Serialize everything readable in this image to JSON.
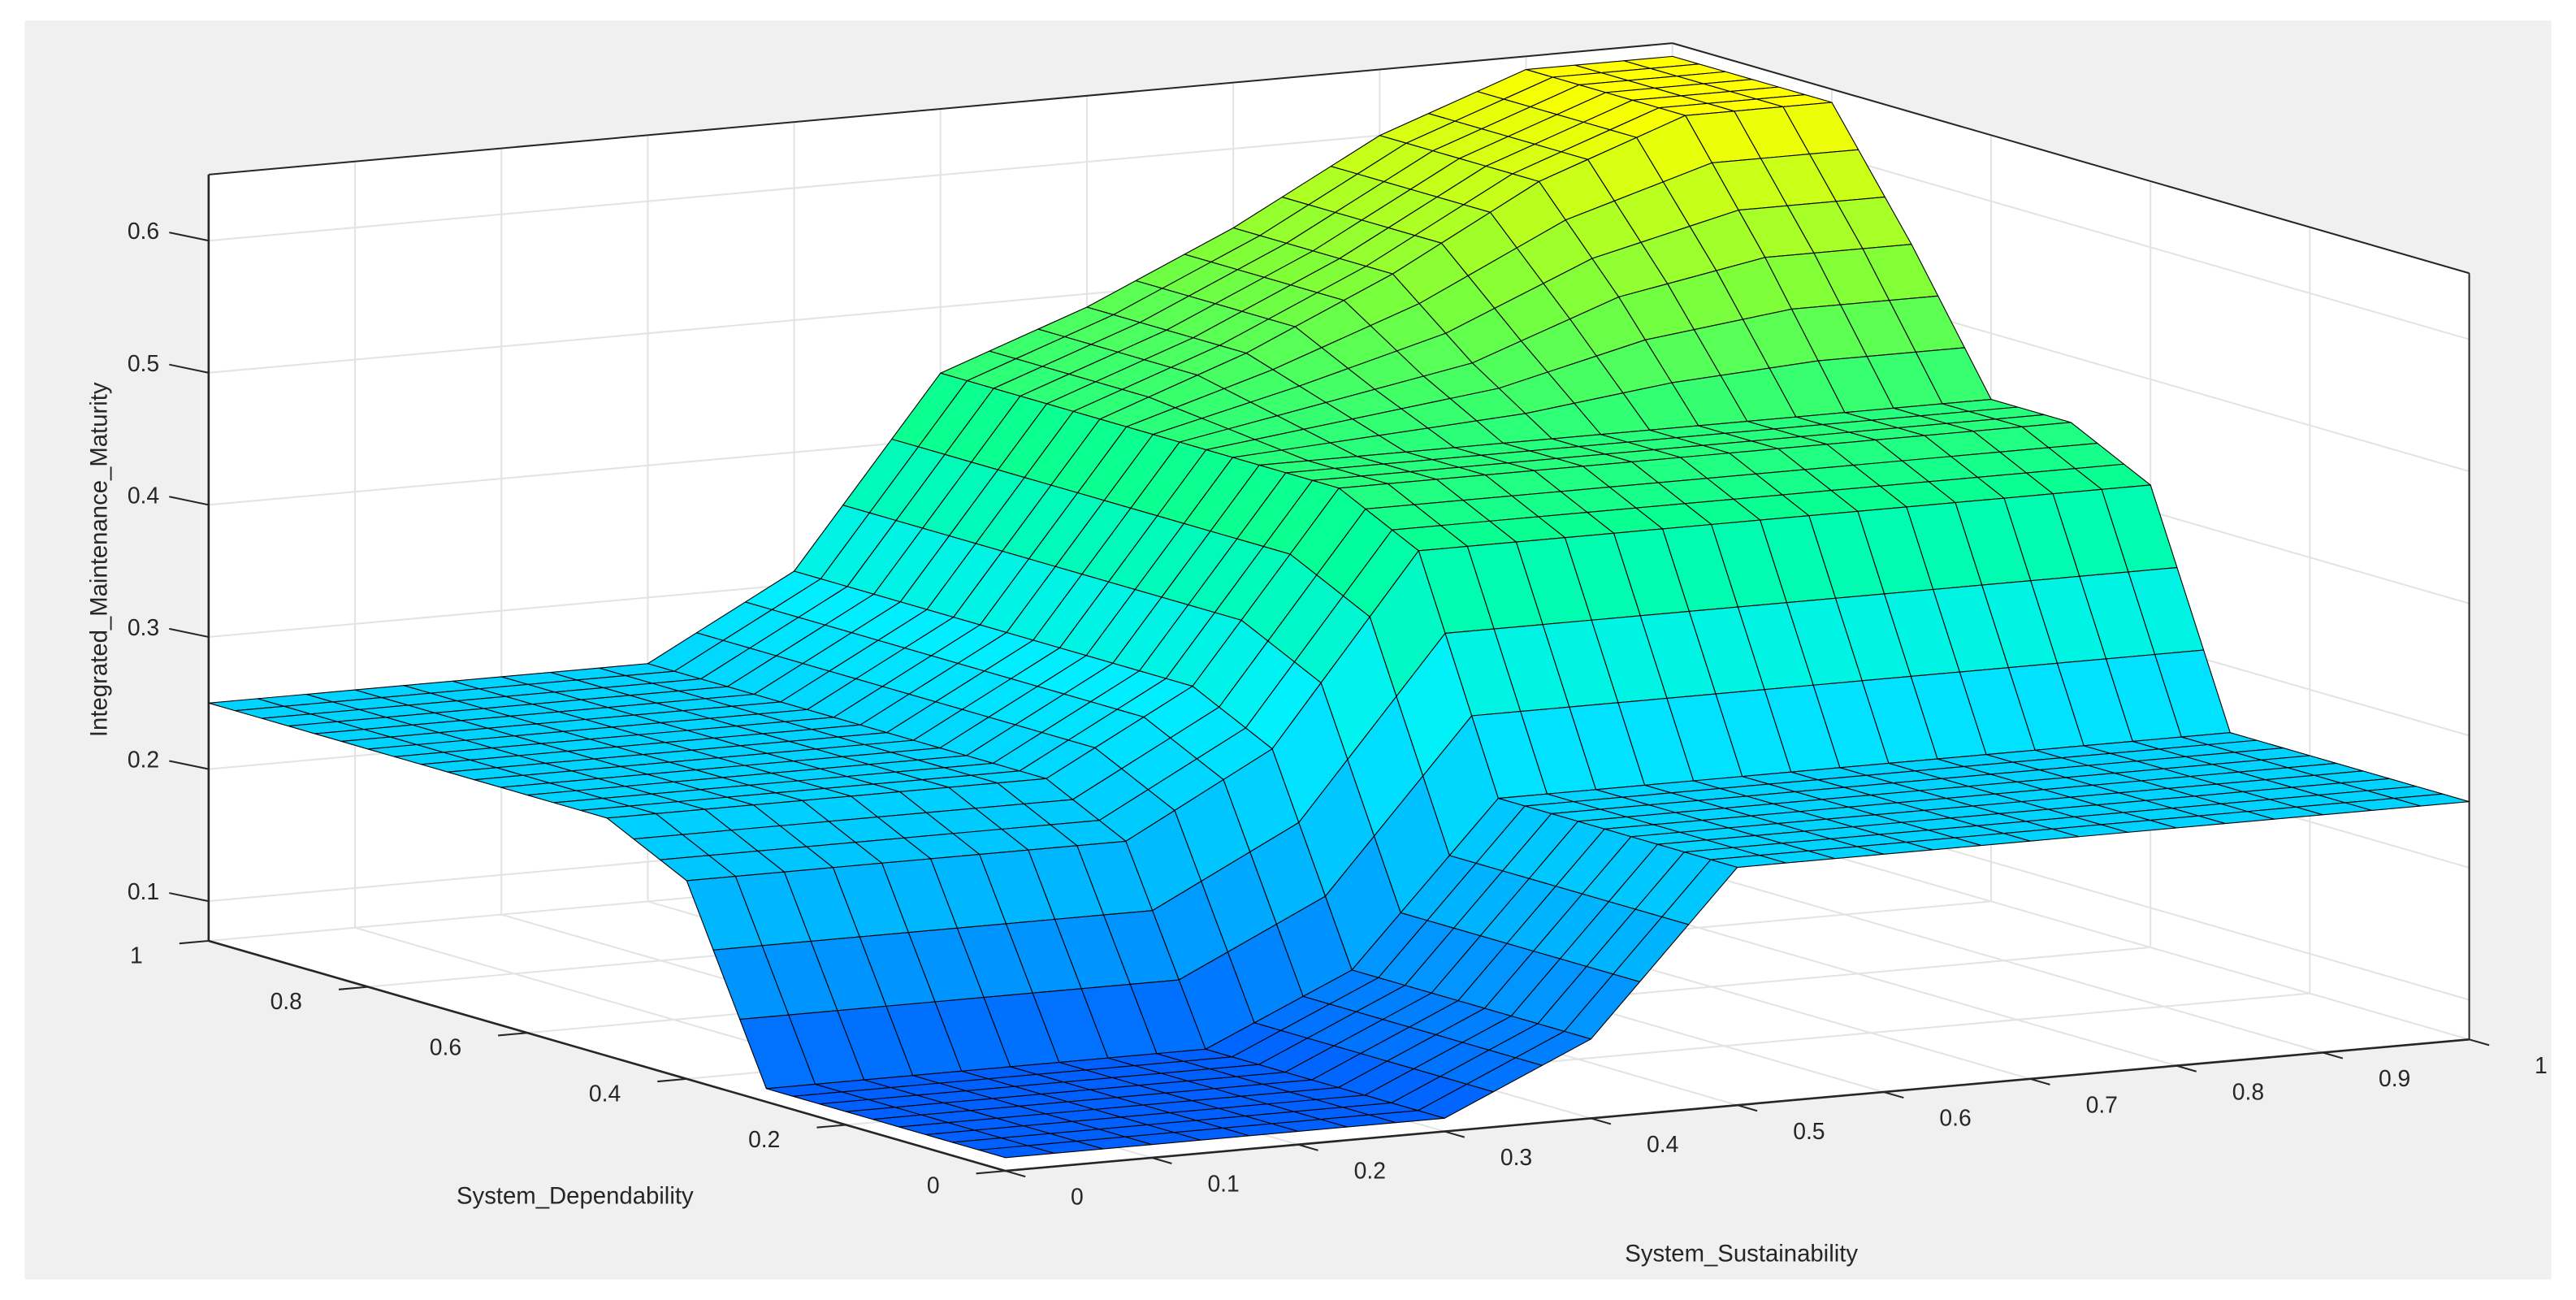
{
  "chart_data": {
    "type": "surface",
    "title": "",
    "xlabel": "System_Sustainability",
    "ylabel": "System_Dependability",
    "zlabel": "Integrated_Maintenance_Maturity",
    "xlim": [
      0,
      1
    ],
    "ylim": [
      0,
      1
    ],
    "zlim": [
      0.07,
      0.65
    ],
    "grid": true,
    "x_ticks": [
      "0",
      "0.1",
      "0.2",
      "0.3",
      "0.4",
      "0.5",
      "0.6",
      "0.7",
      "0.8",
      "0.9",
      "1"
    ],
    "x_tick_values": [
      0,
      0.1,
      0.2,
      0.3,
      0.4,
      0.5,
      0.6,
      0.7,
      0.8,
      0.9,
      1
    ],
    "y_ticks": [
      "0",
      "0.2",
      "0.4",
      "0.6",
      "0.8",
      "1"
    ],
    "y_tick_values": [
      0,
      0.2,
      0.4,
      0.6,
      0.8,
      1
    ],
    "z_ticks": [
      "0.1",
      "0.2",
      "0.3",
      "0.4",
      "0.5",
      "0.6"
    ],
    "z_tick_values": [
      0.1,
      0.2,
      0.3,
      0.4,
      0.5,
      0.6
    ],
    "x": [
      0,
      0.1,
      0.2,
      0.3,
      0.4,
      0.5,
      0.6,
      0.7,
      0.8,
      0.9,
      1
    ],
    "y": [
      0,
      0.1,
      0.2,
      0.3,
      0.4,
      0.5,
      0.6,
      0.7,
      0.8,
      0.9,
      1
    ],
    "z_rows_by_y": [
      [
        0.08,
        0.08,
        0.08,
        0.08,
        0.13,
        0.25,
        0.25,
        0.25,
        0.25,
        0.25,
        0.25
      ],
      [
        0.08,
        0.08,
        0.08,
        0.08,
        0.13,
        0.25,
        0.25,
        0.25,
        0.25,
        0.25,
        0.25
      ],
      [
        0.08,
        0.08,
        0.08,
        0.08,
        0.13,
        0.25,
        0.25,
        0.25,
        0.25,
        0.25,
        0.25
      ],
      [
        0.08,
        0.08,
        0.08,
        0.08,
        0.13,
        0.25,
        0.25,
        0.25,
        0.25,
        0.25,
        0.25
      ],
      [
        0.22,
        0.22,
        0.22,
        0.22,
        0.28,
        0.42,
        0.42,
        0.42,
        0.42,
        0.42,
        0.42
      ],
      [
        0.25,
        0.25,
        0.25,
        0.25,
        0.31,
        0.45,
        0.45,
        0.45,
        0.45,
        0.45,
        0.45
      ],
      [
        0.25,
        0.25,
        0.25,
        0.25,
        0.31,
        0.45,
        0.45,
        0.45,
        0.45,
        0.45,
        0.45
      ],
      [
        0.25,
        0.25,
        0.25,
        0.25,
        0.31,
        0.45,
        0.47,
        0.49,
        0.53,
        0.55,
        0.55
      ],
      [
        0.25,
        0.25,
        0.25,
        0.25,
        0.31,
        0.45,
        0.49,
        0.54,
        0.6,
        0.64,
        0.64
      ],
      [
        0.25,
        0.25,
        0.25,
        0.25,
        0.31,
        0.45,
        0.49,
        0.54,
        0.6,
        0.64,
        0.64
      ],
      [
        0.25,
        0.25,
        0.25,
        0.25,
        0.31,
        0.45,
        0.49,
        0.54,
        0.6,
        0.64,
        0.64
      ]
    ],
    "colormap": [
      "#0060ff",
      "#00b4ff",
      "#00f0ff",
      "#00ff9a",
      "#7cff3a",
      "#ffff00"
    ],
    "edge_color": "#000000",
    "figure_background": "#f0f0f0",
    "axes_background": "#ffffff"
  }
}
